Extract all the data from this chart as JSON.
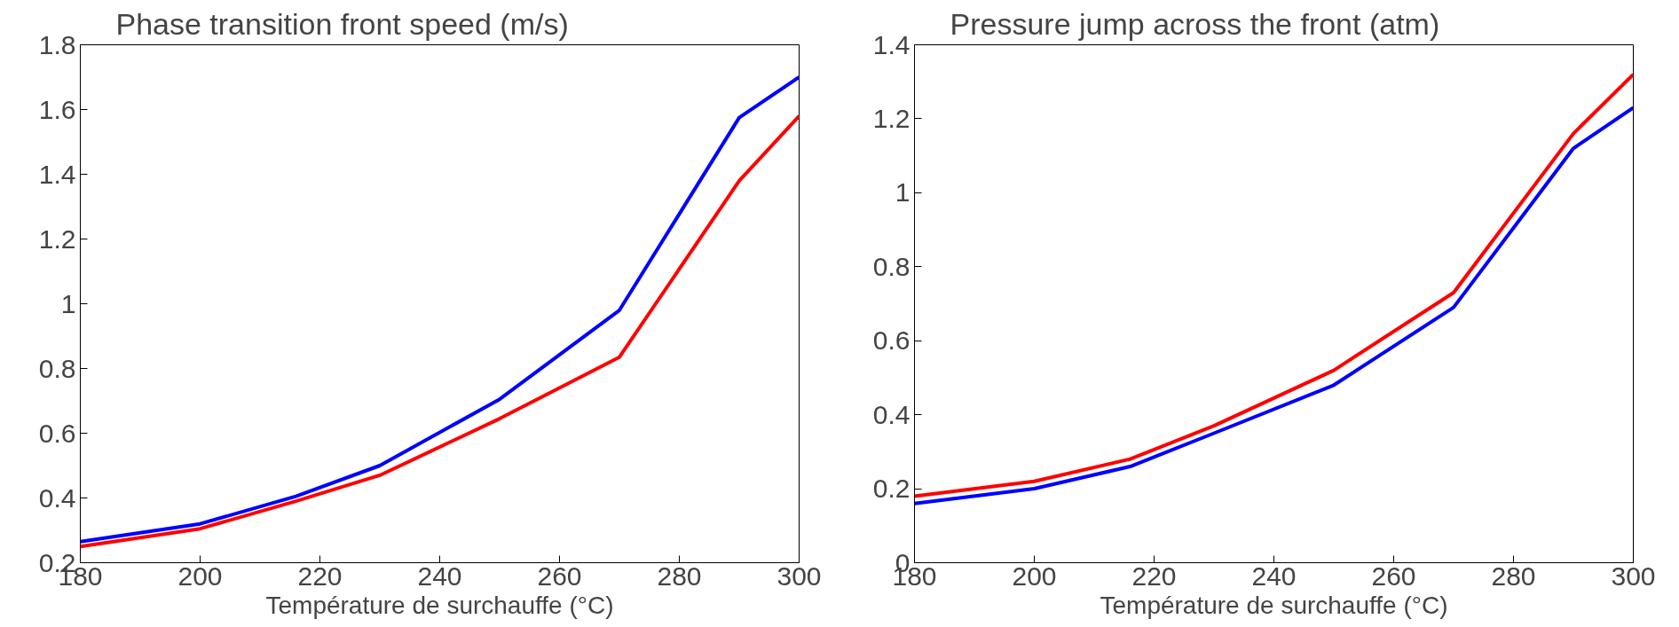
{
  "chart_data": [
    {
      "type": "line",
      "title": "Phase transition front speed (m/s)",
      "xlabel": "Température de surchauffe (°C)",
      "x": [
        180,
        200,
        216,
        230,
        250,
        270,
        290,
        300
      ],
      "xlim": [
        180,
        300
      ],
      "xticks": [
        180,
        200,
        220,
        240,
        260,
        280,
        300
      ],
      "ylim": [
        0.2,
        1.8
      ],
      "yticks": [
        0.2,
        0.4,
        0.6,
        0.8,
        1,
        1.2,
        1.4,
        1.6,
        1.8
      ],
      "grid": false,
      "series": [
        {
          "color": "#0000ff",
          "values": [
            0.265,
            0.32,
            0.405,
            0.5,
            0.705,
            0.98,
            1.575,
            1.7
          ]
        },
        {
          "color": "#ff0000",
          "values": [
            0.25,
            0.305,
            0.39,
            0.47,
            0.645,
            0.835,
            1.38,
            1.58
          ]
        }
      ]
    },
    {
      "type": "line",
      "title": "Pressure jump across the front (atm)",
      "xlabel": "Température de surchauffe (°C)",
      "x": [
        180,
        200,
        216,
        230,
        250,
        270,
        290,
        300
      ],
      "xlim": [
        180,
        300
      ],
      "xticks": [
        180,
        200,
        220,
        240,
        260,
        280,
        300
      ],
      "ylim": [
        0,
        1.4
      ],
      "yticks": [
        0,
        0.2,
        0.4,
        0.6,
        0.8,
        1,
        1.2,
        1.4
      ],
      "grid": false,
      "series": [
        {
          "color": "#ff0000",
          "values": [
            0.18,
            0.22,
            0.28,
            0.37,
            0.52,
            0.73,
            1.16,
            1.32
          ]
        },
        {
          "color": "#0000ff",
          "values": [
            0.16,
            0.2,
            0.26,
            0.35,
            0.48,
            0.69,
            1.12,
            1.23
          ]
        }
      ]
    }
  ]
}
